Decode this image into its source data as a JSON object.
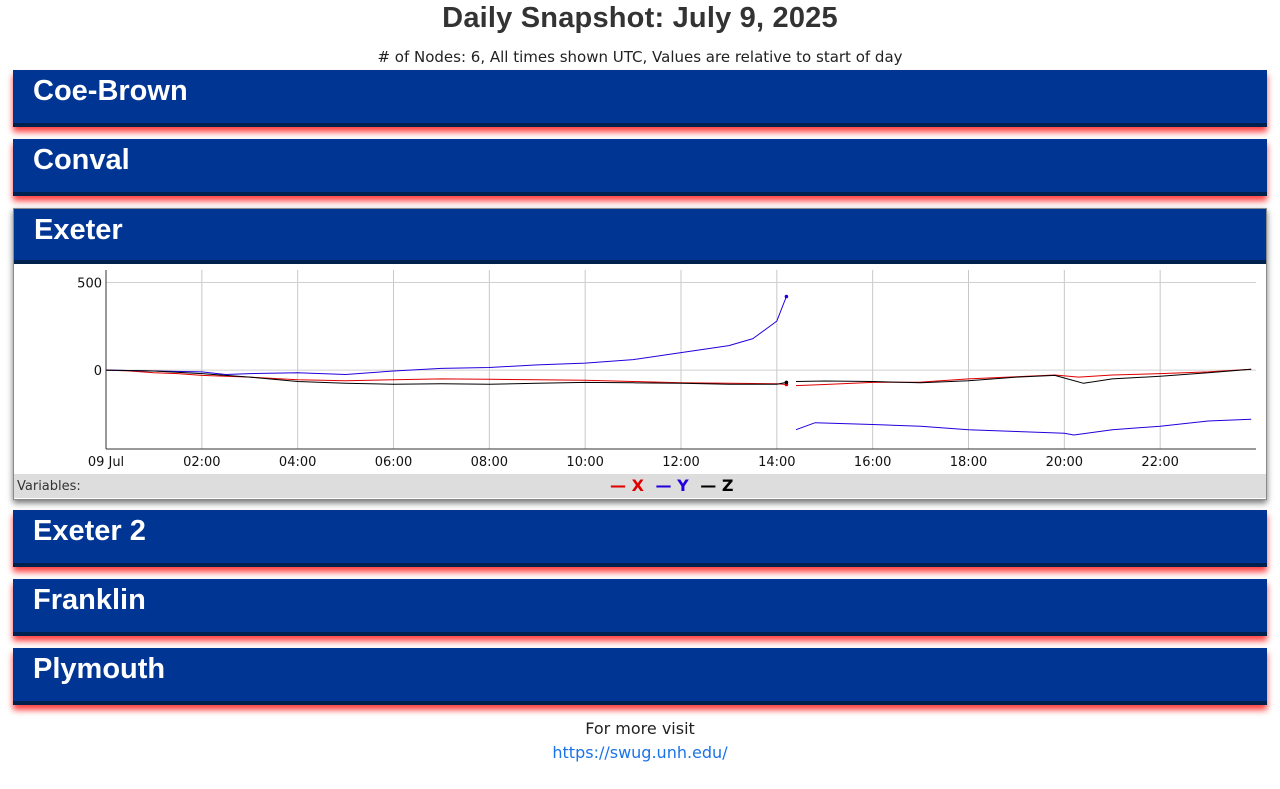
{
  "header": {
    "title": "Daily Snapshot: July 9, 2025",
    "subtitle": "# of Nodes: 6, All times shown UTC, Values are relative to start of day"
  },
  "nodes": [
    {
      "name": "Coe-Brown",
      "expanded": false
    },
    {
      "name": "Conval",
      "expanded": false
    },
    {
      "name": "Exeter",
      "expanded": true
    },
    {
      "name": "Exeter 2",
      "expanded": false
    },
    {
      "name": "Franklin",
      "expanded": false
    },
    {
      "name": "Plymouth",
      "expanded": false
    }
  ],
  "colors": {
    "panel": "#003594",
    "panel_border": "#00204d",
    "panel_glow": "#ff0000",
    "x_series": "#e00000",
    "y_series": "#2200dd",
    "z_series": "#000000",
    "link": "#1a73e8"
  },
  "legend": {
    "label": "Variables:",
    "dash": "—",
    "items": [
      {
        "name": "X",
        "color": "#e00000"
      },
      {
        "name": "Y",
        "color": "#2200dd"
      },
      {
        "name": "Z",
        "color": "#000000"
      }
    ]
  },
  "chart_data": {
    "type": "line",
    "x_tick_labels": [
      "09 Jul",
      "02:00",
      "04:00",
      "06:00",
      "08:00",
      "10:00",
      "12:00",
      "14:00",
      "16:00",
      "18:00",
      "20:00",
      "22:00"
    ],
    "y_tick_labels": [
      "500",
      "0"
    ],
    "ylim": [
      -450,
      560
    ],
    "xlim_hours": [
      0,
      24
    ],
    "grid": true,
    "legend": "bottom",
    "series": [
      {
        "name": "X",
        "color": "#e00000",
        "segments": [
          [
            [
              0,
              0
            ],
            [
              0.5,
              -5
            ],
            [
              1,
              -15
            ],
            [
              1.5,
              -20
            ],
            [
              2,
              -30
            ],
            [
              3,
              -40
            ],
            [
              4,
              -55
            ],
            [
              5,
              -60
            ],
            [
              6,
              -55
            ],
            [
              7,
              -50
            ],
            [
              8,
              -52
            ],
            [
              9,
              -55
            ],
            [
              10,
              -58
            ],
            [
              11,
              -65
            ],
            [
              12,
              -72
            ],
            [
              13,
              -75
            ],
            [
              14,
              -78
            ],
            [
              14.2,
              -82
            ]
          ],
          [
            [
              14.4,
              -88
            ],
            [
              15,
              -82
            ],
            [
              16,
              -70
            ],
            [
              17,
              -68
            ],
            [
              18,
              -50
            ],
            [
              19,
              -38
            ],
            [
              19.8,
              -28
            ],
            [
              20.3,
              -40
            ],
            [
              21,
              -28
            ],
            [
              22,
              -20
            ],
            [
              23,
              -10
            ],
            [
              23.9,
              5
            ]
          ]
        ]
      },
      {
        "name": "Y",
        "color": "#2200dd",
        "segments": [
          [
            [
              0,
              0
            ],
            [
              1,
              -5
            ],
            [
              2,
              -10
            ],
            [
              2.5,
              -25
            ],
            [
              3,
              -20
            ],
            [
              4,
              -15
            ],
            [
              5,
              -25
            ],
            [
              6,
              -5
            ],
            [
              7,
              10
            ],
            [
              8,
              15
            ],
            [
              9,
              30
            ],
            [
              10,
              40
            ],
            [
              11,
              60
            ],
            [
              12,
              100
            ],
            [
              13,
              140
            ],
            [
              13.5,
              180
            ],
            [
              13.8,
              240
            ],
            [
              14,
              280
            ],
            [
              14.2,
              420
            ]
          ],
          [
            [
              14.4,
              -340
            ],
            [
              14.8,
              -300
            ],
            [
              16,
              -310
            ],
            [
              17,
              -320
            ],
            [
              18,
              -340
            ],
            [
              19,
              -350
            ],
            [
              20,
              -360
            ],
            [
              20.2,
              -370
            ],
            [
              21,
              -340
            ],
            [
              22,
              -320
            ],
            [
              23,
              -290
            ],
            [
              23.9,
              -280
            ]
          ]
        ]
      },
      {
        "name": "Z",
        "color": "#000000",
        "segments": [
          [
            [
              0,
              0
            ],
            [
              1,
              -5
            ],
            [
              2,
              -20
            ],
            [
              3,
              -40
            ],
            [
              4,
              -65
            ],
            [
              5,
              -75
            ],
            [
              6,
              -80
            ],
            [
              7,
              -78
            ],
            [
              8,
              -80
            ],
            [
              9,
              -75
            ],
            [
              10,
              -70
            ],
            [
              11,
              -72
            ],
            [
              12,
              -75
            ],
            [
              13,
              -80
            ],
            [
              14,
              -80
            ],
            [
              14.2,
              -70
            ]
          ],
          [
            [
              14.4,
              -65
            ],
            [
              15,
              -62
            ],
            [
              16,
              -65
            ],
            [
              17,
              -72
            ],
            [
              18,
              -60
            ],
            [
              19,
              -40
            ],
            [
              19.8,
              -30
            ],
            [
              20.4,
              -75
            ],
            [
              21,
              -50
            ],
            [
              22,
              -35
            ],
            [
              23,
              -15
            ],
            [
              23.9,
              5
            ]
          ]
        ]
      }
    ]
  },
  "footer": {
    "text": "For more visit",
    "link": "https://swug.unh.edu/"
  }
}
